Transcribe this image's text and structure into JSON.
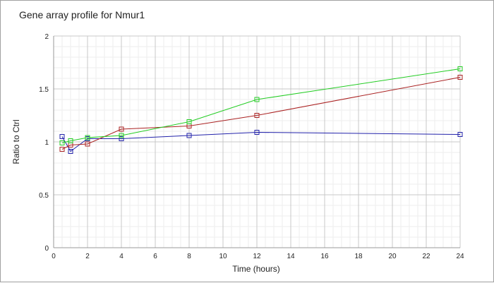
{
  "chart_data": {
    "type": "line",
    "title": "Gene array profile for Nmur1",
    "xlabel": "Time (hours)",
    "ylabel": "Ratio to Ctrl",
    "xlim": [
      0,
      24
    ],
    "ylim": [
      0,
      2
    ],
    "x_ticks": [
      "0",
      "2",
      "4",
      "6",
      "8",
      "10",
      "12",
      "14",
      "16",
      "18",
      "20",
      "22",
      "24"
    ],
    "y_ticks": [
      "0",
      "0.5",
      "1",
      "1.5",
      "2"
    ],
    "grid": true,
    "series": [
      {
        "color": "#2222aa",
        "marker": "square",
        "x": [
          0.5,
          1,
          2,
          4,
          8,
          12,
          24
        ],
        "values": [
          1.05,
          0.91,
          1.03,
          1.03,
          1.06,
          1.09,
          1.07
        ]
      },
      {
        "color": "#aa2222",
        "marker": "square",
        "x": [
          0.5,
          1,
          2,
          4,
          8,
          12,
          24
        ],
        "values": [
          0.93,
          0.97,
          0.98,
          1.12,
          1.15,
          1.25,
          1.61
        ]
      },
      {
        "color": "#22cc22",
        "marker": "square",
        "x": [
          0.5,
          1,
          2,
          4,
          8,
          12,
          24
        ],
        "values": [
          0.99,
          1.01,
          1.04,
          1.06,
          1.19,
          1.4,
          1.69
        ]
      }
    ]
  }
}
